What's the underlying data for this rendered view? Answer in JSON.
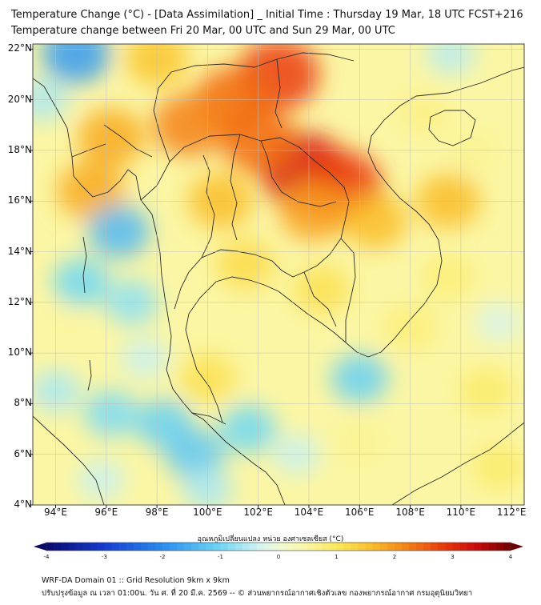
{
  "header": {
    "title_line1": "Temperature Change (°C) - [Data Assimilation] _ Initial Time : Thursday 19 Mar, 18 UTC FCST+216",
    "title_line2": "Temperature change between Fri 20 Mar, 00 UTC and Sun 29 Mar, 00 UTC"
  },
  "map": {
    "lat_labels": [
      "22°N",
      "20°N",
      "18°N",
      "16°N",
      "14°N",
      "12°N",
      "10°N",
      "8°N",
      "6°N",
      "4°N"
    ],
    "lon_labels": [
      "94°E",
      "96°E",
      "98°E",
      "100°E",
      "102°E",
      "104°E",
      "106°E",
      "108°E",
      "110°E",
      "112°E"
    ],
    "lat_range": [
      4,
      22.2
    ],
    "lon_range": [
      93.1,
      112.5
    ],
    "anomalies": [
      {
        "lon": 103.8,
        "lat": 17.2,
        "value": 3.2
      },
      {
        "lon": 105.3,
        "lat": 16.6,
        "value": 2.8
      },
      {
        "lon": 102.8,
        "lat": 21.0,
        "value": 2.8
      },
      {
        "lon": 101.0,
        "lat": 20.0,
        "value": 2.4
      },
      {
        "lon": 99.3,
        "lat": 19.0,
        "value": 2.2
      },
      {
        "lon": 102.0,
        "lat": 18.4,
        "value": 2.4
      },
      {
        "lon": 104.2,
        "lat": 15.6,
        "value": 1.9
      },
      {
        "lon": 100.5,
        "lat": 16.0,
        "value": 1.6
      },
      {
        "lon": 101.5,
        "lat": 13.5,
        "value": 1.2
      },
      {
        "lon": 104.5,
        "lat": 12.5,
        "value": 1.1
      },
      {
        "lon": 106.6,
        "lat": 15.2,
        "value": 1.6
      },
      {
        "lon": 96.2,
        "lat": 18.5,
        "value": 1.8
      },
      {
        "lon": 95.4,
        "lat": 16.4,
        "value": 1.8
      },
      {
        "lon": 98.0,
        "lat": 21.6,
        "value": 1.5
      },
      {
        "lon": 100.0,
        "lat": 9.0,
        "value": 1.1
      },
      {
        "lon": 109.5,
        "lat": 16.0,
        "value": 1.6
      },
      {
        "lon": 108.5,
        "lat": 19.5,
        "value": 0.7
      },
      {
        "lon": 110.5,
        "lat": 18.0,
        "value": 0.6
      },
      {
        "lon": 108.0,
        "lat": 11.0,
        "value": 0.8
      },
      {
        "lon": 111.0,
        "lat": 8.5,
        "value": 0.9
      },
      {
        "lon": 111.5,
        "lat": 5.5,
        "value": 0.9
      },
      {
        "lon": 106.0,
        "lat": 6.5,
        "value": 0.6
      },
      {
        "lon": 109.5,
        "lat": 13.0,
        "value": 0.8
      },
      {
        "lon": 94.2,
        "lat": 11.0,
        "value": 0.5
      },
      {
        "lon": 94.8,
        "lat": 21.8,
        "value": -1.8
      },
      {
        "lon": 93.5,
        "lat": 20.0,
        "value": -0.6
      },
      {
        "lon": 96.5,
        "lat": 14.8,
        "value": -1.4
      },
      {
        "lon": 95.0,
        "lat": 12.8,
        "value": -1.0
      },
      {
        "lon": 97.0,
        "lat": 12.0,
        "value": -0.8
      },
      {
        "lon": 94.0,
        "lat": 8.5,
        "value": -0.6
      },
      {
        "lon": 96.2,
        "lat": 7.6,
        "value": -0.9
      },
      {
        "lon": 98.3,
        "lat": 7.2,
        "value": -1.1
      },
      {
        "lon": 99.5,
        "lat": 6.0,
        "value": -1.2
      },
      {
        "lon": 101.6,
        "lat": 7.0,
        "value": -1.0
      },
      {
        "lon": 100.0,
        "lat": 4.6,
        "value": -0.6
      },
      {
        "lon": 106.0,
        "lat": 9.0,
        "value": -1.1
      },
      {
        "lon": 103.5,
        "lat": 6.0,
        "value": -0.4
      },
      {
        "lon": 97.5,
        "lat": 9.8,
        "value": -0.4
      },
      {
        "lon": 109.6,
        "lat": 21.8,
        "value": -0.5
      },
      {
        "lon": 111.5,
        "lat": 11.2,
        "value": -0.3
      },
      {
        "lon": 95.8,
        "lat": 5.0,
        "value": -0.4
      }
    ]
  },
  "colorbar": {
    "title": "อุณหภูมิเปลี่ยนแปลง หน่วย องศาเซลเซียส (°C)",
    "min": -4,
    "max": 4,
    "tick_labels": [
      "-4",
      "-3",
      "-2",
      "-1",
      "0",
      "1",
      "2",
      "3",
      "4"
    ]
  },
  "footer": {
    "line1": "WRF-DA Domain 01 :: Grid Resolution 9km x 9km",
    "line2": "ปรับปรุงข้อมูล ณ เวลา 01:00น. วัน ศ. ที่ 20 มี.ค. 2569 -- © ส่วนพยากรณ์อากาศเชิงตัวเลข กองพยากรณ์อากาศ กรมอุตุนิยมวิทยา"
  }
}
